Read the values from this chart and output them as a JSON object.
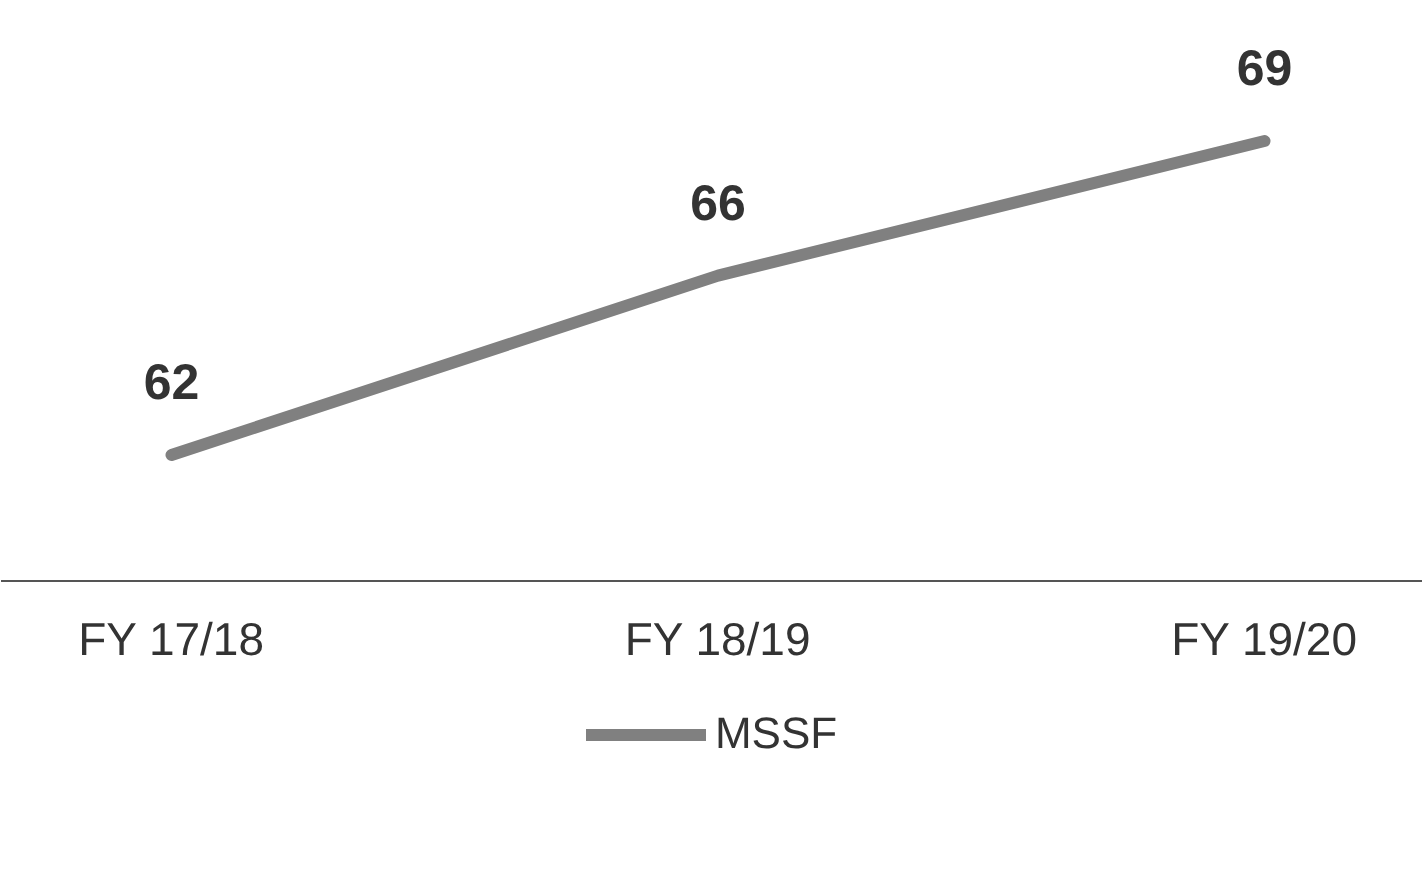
{
  "chart_data": {
    "type": "line",
    "categories": [
      "FY 17/18",
      "FY 18/19",
      "FY 19/20"
    ],
    "series": [
      {
        "name": "MSSF",
        "color": "#808080",
        "values": [
          62,
          66,
          69
        ]
      }
    ],
    "data_labels": true,
    "legend": "bottom",
    "marker": "none",
    "line_style": "solid"
  }
}
